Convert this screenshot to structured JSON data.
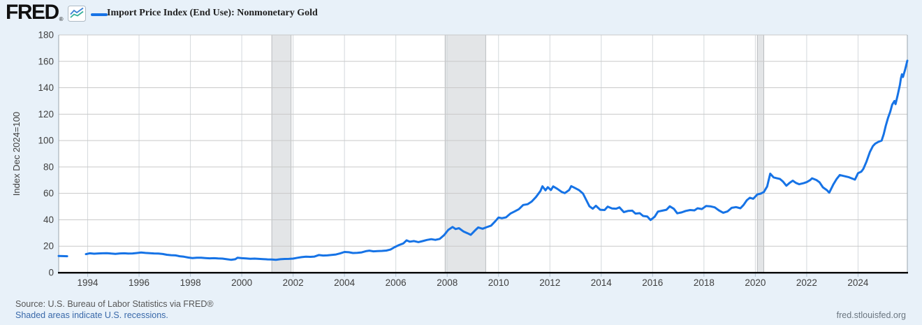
{
  "header": {
    "logo_text": "FRED",
    "logo_registered": "®",
    "legend_label": "Import Price Index (End Use): Nonmonetary Gold"
  },
  "footer": {
    "source": "Source: U.S. Bureau of Labor Statistics via FRED®",
    "recession_note": "Shaded areas indicate U.S. recessions.",
    "watermark": "fred.stlouisfed.org"
  },
  "colors": {
    "background": "#e8f1f9",
    "plot_background": "#ffffff",
    "line": "#1673e6",
    "h_gridline": "#c9c9c9",
    "v_gridline": "#d4d8dc",
    "recession_band": "#e3e5e7",
    "recession_band_edge": "#b9bcbf",
    "axis_bottom": "#000000",
    "plot_border": "#9aa5ad",
    "tick_mark": "#b3c4d4",
    "tick_text": "#404040",
    "title_text": "#1f1f1f",
    "link": "#3868a9",
    "source_text": "#565656",
    "watermark_text": "#6b7680"
  },
  "chart_data": {
    "type": "line",
    "title": "Import Price Index (End Use): Nonmonetary Gold",
    "ylabel": "Index Dec 2024=100",
    "xlabel": "",
    "ylim": [
      0,
      180
    ],
    "y_ticks": [
      0,
      20,
      40,
      60,
      80,
      100,
      120,
      140,
      160,
      180
    ],
    "x_domain": [
      1992.87,
      2025.92
    ],
    "x_ticks": [
      1994,
      1996,
      1998,
      2000,
      2002,
      2004,
      2006,
      2008,
      2010,
      2012,
      2014,
      2016,
      2018,
      2020,
      2022,
      2024
    ],
    "grid": true,
    "legend_position": "top-left",
    "recessions": [
      [
        2001.17,
        2001.92
      ],
      [
        2007.92,
        2009.5
      ],
      [
        2020.08,
        2020.33
      ]
    ],
    "series": [
      {
        "name": "Import Price Index (End Use): Nonmonetary Gold",
        "segments": [
          [
            [
              1992.87,
              12.6
            ],
            [
              1993.0,
              12.5
            ],
            [
              1993.2,
              12.4
            ]
          ],
          [
            [
              1993.93,
              14.0
            ],
            [
              1994.08,
              14.6
            ],
            [
              1994.25,
              14.3
            ],
            [
              1994.42,
              14.5
            ],
            [
              1994.58,
              14.6
            ],
            [
              1994.75,
              14.7
            ],
            [
              1994.92,
              14.4
            ],
            [
              1995.08,
              14.2
            ],
            [
              1995.25,
              14.5
            ],
            [
              1995.42,
              14.6
            ],
            [
              1995.58,
              14.4
            ],
            [
              1995.75,
              14.5
            ],
            [
              1995.92,
              14.8
            ],
            [
              1996.08,
              15.2
            ],
            [
              1996.25,
              14.9
            ],
            [
              1996.42,
              14.7
            ],
            [
              1996.58,
              14.5
            ],
            [
              1996.75,
              14.4
            ],
            [
              1996.92,
              14.1
            ],
            [
              1997.08,
              13.5
            ],
            [
              1997.25,
              13.2
            ],
            [
              1997.42,
              13.0
            ],
            [
              1997.58,
              12.4
            ],
            [
              1997.75,
              12.0
            ],
            [
              1997.92,
              11.4
            ],
            [
              1998.08,
              11.0
            ],
            [
              1998.25,
              11.2
            ],
            [
              1998.42,
              11.3
            ],
            [
              1998.58,
              11.0
            ],
            [
              1998.75,
              10.8
            ],
            [
              1998.92,
              10.9
            ],
            [
              1999.08,
              10.7
            ],
            [
              1999.25,
              10.6
            ],
            [
              1999.42,
              10.1
            ],
            [
              1999.58,
              9.7
            ],
            [
              1999.75,
              10.1
            ],
            [
              1999.83,
              11.2
            ],
            [
              2000.0,
              10.9
            ],
            [
              2000.17,
              10.7
            ],
            [
              2000.33,
              10.5
            ],
            [
              2000.5,
              10.6
            ],
            [
              2000.67,
              10.4
            ],
            [
              2000.83,
              10.2
            ],
            [
              2001.0,
              10.0
            ],
            [
              2001.17,
              9.9
            ],
            [
              2001.33,
              9.7
            ],
            [
              2001.5,
              10.1
            ],
            [
              2001.67,
              10.3
            ],
            [
              2001.83,
              10.4
            ],
            [
              2002.0,
              10.6
            ],
            [
              2002.17,
              11.2
            ],
            [
              2002.33,
              11.7
            ],
            [
              2002.5,
              12.0
            ],
            [
              2002.67,
              11.9
            ],
            [
              2002.83,
              12.1
            ],
            [
              2003.0,
              13.3
            ],
            [
              2003.17,
              12.9
            ],
            [
              2003.33,
              13.0
            ],
            [
              2003.5,
              13.4
            ],
            [
              2003.67,
              13.7
            ],
            [
              2003.83,
              14.5
            ],
            [
              2004.0,
              15.6
            ],
            [
              2004.17,
              15.4
            ],
            [
              2004.33,
              14.8
            ],
            [
              2004.5,
              15.0
            ],
            [
              2004.67,
              15.3
            ],
            [
              2004.83,
              16.2
            ],
            [
              2004.97,
              16.6
            ],
            [
              2005.13,
              16.1
            ],
            [
              2005.29,
              16.3
            ],
            [
              2005.46,
              16.4
            ],
            [
              2005.63,
              16.7
            ],
            [
              2005.79,
              17.4
            ],
            [
              2005.96,
              19.3
            ],
            [
              2006.13,
              20.9
            ],
            [
              2006.29,
              22.1
            ],
            [
              2006.42,
              24.4
            ],
            [
              2006.54,
              23.4
            ],
            [
              2006.71,
              23.9
            ],
            [
              2006.88,
              23.1
            ],
            [
              2007.04,
              23.8
            ],
            [
              2007.21,
              24.7
            ],
            [
              2007.38,
              25.3
            ],
            [
              2007.54,
              24.8
            ],
            [
              2007.71,
              25.5
            ],
            [
              2007.88,
              28.4
            ],
            [
              2008.04,
              32.3
            ],
            [
              2008.21,
              34.5
            ],
            [
              2008.33,
              33.0
            ],
            [
              2008.46,
              33.6
            ],
            [
              2008.63,
              31.2
            ],
            [
              2008.79,
              29.8
            ],
            [
              2008.92,
              28.6
            ],
            [
              2009.08,
              31.8
            ],
            [
              2009.21,
              34.2
            ],
            [
              2009.38,
              33.2
            ],
            [
              2009.54,
              34.4
            ],
            [
              2009.71,
              35.6
            ],
            [
              2009.88,
              39.0
            ],
            [
              2010.0,
              41.7
            ],
            [
              2010.13,
              41.2
            ],
            [
              2010.29,
              41.8
            ],
            [
              2010.46,
              44.7
            ],
            [
              2010.63,
              46.4
            ],
            [
              2010.79,
              48.0
            ],
            [
              2010.96,
              51.2
            ],
            [
              2011.13,
              51.8
            ],
            [
              2011.29,
              53.8
            ],
            [
              2011.46,
              57.3
            ],
            [
              2011.63,
              61.8
            ],
            [
              2011.71,
              65.4
            ],
            [
              2011.83,
              62.3
            ],
            [
              2011.92,
              64.7
            ],
            [
              2012.04,
              62.5
            ],
            [
              2012.13,
              65.3
            ],
            [
              2012.29,
              63.4
            ],
            [
              2012.46,
              61.1
            ],
            [
              2012.58,
              60.2
            ],
            [
              2012.75,
              62.5
            ],
            [
              2012.83,
              65.5
            ],
            [
              2012.96,
              64.2
            ],
            [
              2013.13,
              62.5
            ],
            [
              2013.29,
              59.8
            ],
            [
              2013.42,
              54.8
            ],
            [
              2013.54,
              50.2
            ],
            [
              2013.67,
              48.4
            ],
            [
              2013.79,
              50.6
            ],
            [
              2013.96,
              47.6
            ],
            [
              2014.13,
              47.4
            ],
            [
              2014.25,
              50.0
            ],
            [
              2014.42,
              48.6
            ],
            [
              2014.58,
              48.4
            ],
            [
              2014.71,
              49.4
            ],
            [
              2014.88,
              45.8
            ],
            [
              2015.04,
              46.7
            ],
            [
              2015.21,
              46.9
            ],
            [
              2015.33,
              44.7
            ],
            [
              2015.5,
              45.0
            ],
            [
              2015.63,
              42.9
            ],
            [
              2015.79,
              42.5
            ],
            [
              2015.92,
              39.8
            ],
            [
              2016.08,
              42.3
            ],
            [
              2016.21,
              46.2
            ],
            [
              2016.38,
              46.9
            ],
            [
              2016.54,
              47.6
            ],
            [
              2016.67,
              50.2
            ],
            [
              2016.83,
              48.3
            ],
            [
              2016.96,
              44.9
            ],
            [
              2017.13,
              45.6
            ],
            [
              2017.29,
              46.7
            ],
            [
              2017.46,
              47.4
            ],
            [
              2017.63,
              47.1
            ],
            [
              2017.75,
              48.7
            ],
            [
              2017.92,
              48.1
            ],
            [
              2018.08,
              50.4
            ],
            [
              2018.25,
              50.2
            ],
            [
              2018.42,
              49.4
            ],
            [
              2018.58,
              47.1
            ],
            [
              2018.75,
              45.3
            ],
            [
              2018.92,
              46.4
            ],
            [
              2019.08,
              49.0
            ],
            [
              2019.25,
              49.6
            ],
            [
              2019.42,
              48.7
            ],
            [
              2019.54,
              51.2
            ],
            [
              2019.67,
              54.8
            ],
            [
              2019.79,
              56.7
            ],
            [
              2019.92,
              55.9
            ],
            [
              2020.08,
              59.2
            ],
            [
              2020.21,
              59.8
            ],
            [
              2020.33,
              61.0
            ],
            [
              2020.46,
              65.2
            ],
            [
              2020.58,
              74.9
            ],
            [
              2020.71,
              72.1
            ],
            [
              2020.83,
              71.5
            ],
            [
              2020.96,
              70.9
            ],
            [
              2021.08,
              68.9
            ],
            [
              2021.21,
              65.8
            ],
            [
              2021.33,
              67.9
            ],
            [
              2021.46,
              69.6
            ],
            [
              2021.58,
              67.9
            ],
            [
              2021.71,
              66.9
            ],
            [
              2021.88,
              67.7
            ],
            [
              2022.0,
              68.5
            ],
            [
              2022.13,
              70.0
            ],
            [
              2022.21,
              71.4
            ],
            [
              2022.38,
              70.1
            ],
            [
              2022.5,
              68.4
            ],
            [
              2022.63,
              64.6
            ],
            [
              2022.79,
              62.4
            ],
            [
              2022.88,
              60.5
            ],
            [
              2023.04,
              66.8
            ],
            [
              2023.17,
              71.0
            ],
            [
              2023.29,
              73.9
            ],
            [
              2023.46,
              73.1
            ],
            [
              2023.63,
              72.3
            ],
            [
              2023.75,
              71.4
            ],
            [
              2023.88,
              70.4
            ],
            [
              2024.0,
              75.3
            ],
            [
              2024.13,
              76.5
            ],
            [
              2024.21,
              78.6
            ],
            [
              2024.33,
              84.0
            ],
            [
              2024.46,
              91.2
            ],
            [
              2024.58,
              95.8
            ],
            [
              2024.67,
              97.6
            ],
            [
              2024.79,
              99.0
            ],
            [
              2024.92,
              100.0
            ],
            [
              2025.0,
              104.8
            ],
            [
              2025.08,
              111.2
            ],
            [
              2025.17,
              117.2
            ],
            [
              2025.25,
              121.6
            ],
            [
              2025.33,
              127.2
            ],
            [
              2025.42,
              130.0
            ],
            [
              2025.46,
              127.6
            ],
            [
              2025.54,
              134.0
            ],
            [
              2025.63,
              142.0
            ],
            [
              2025.67,
              147.0
            ],
            [
              2025.71,
              150.2
            ],
            [
              2025.75,
              148.2
            ],
            [
              2025.83,
              153.5
            ],
            [
              2025.92,
              160.5
            ]
          ]
        ]
      }
    ]
  }
}
